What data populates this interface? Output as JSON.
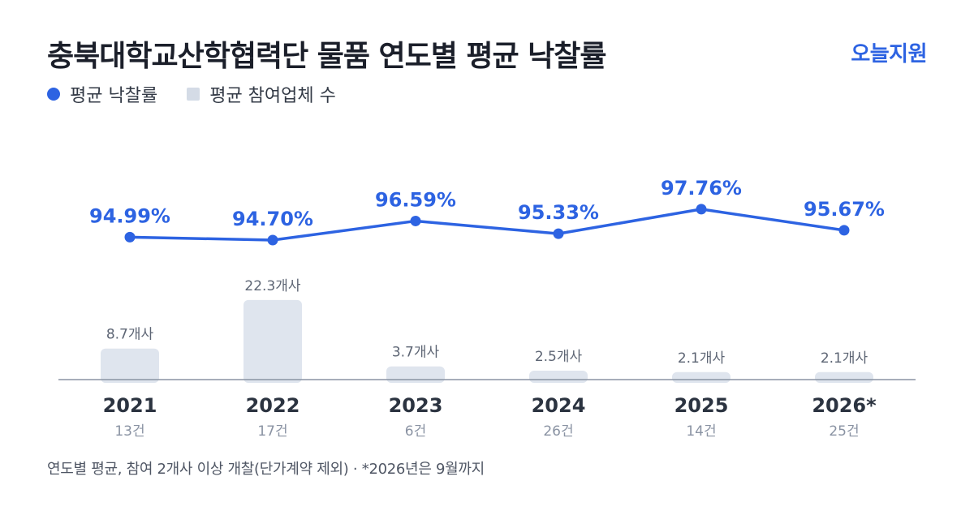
{
  "header": {
    "title": "충북대학교산학협력단 물품 연도별 평균 낙찰률",
    "brand": "오늘지원"
  },
  "legend": {
    "rate_label": "평균 낙찰률",
    "participants_label": "평균 참여업체 수"
  },
  "colors": {
    "line": "#2d63e2",
    "bar": "#dfe5ee",
    "axis": "#8a93a3",
    "year_text": "#2b3340",
    "count_text": "#8a93a3",
    "bar_label": "#5d6574"
  },
  "chart_data": {
    "type": "bar+line",
    "categories": [
      "2021",
      "2022",
      "2023",
      "2024",
      "2025",
      "2026*"
    ],
    "series": [
      {
        "name": "평균 낙찰률",
        "type": "line",
        "values": [
          94.99,
          94.7,
          96.59,
          95.33,
          97.76,
          95.67
        ],
        "labels": [
          "94.99%",
          "94.70%",
          "96.59%",
          "95.33%",
          "97.76%",
          "95.67%"
        ]
      },
      {
        "name": "평균 참여업체 수",
        "type": "bar",
        "values": [
          8.7,
          22.3,
          3.7,
          2.5,
          2.1,
          2.1
        ],
        "labels": [
          "8.7개사",
          "22.3개사",
          "3.7개사",
          "2.5개사",
          "2.1개사",
          "2.1개사"
        ]
      }
    ],
    "counts": [
      "13건",
      "17건",
      "6건",
      "26건",
      "14건",
      "25건"
    ]
  },
  "footnote": "연도별 평균, 참여 2개사 이상 개찰(단가계약 제외) · *2026년은 9월까지"
}
